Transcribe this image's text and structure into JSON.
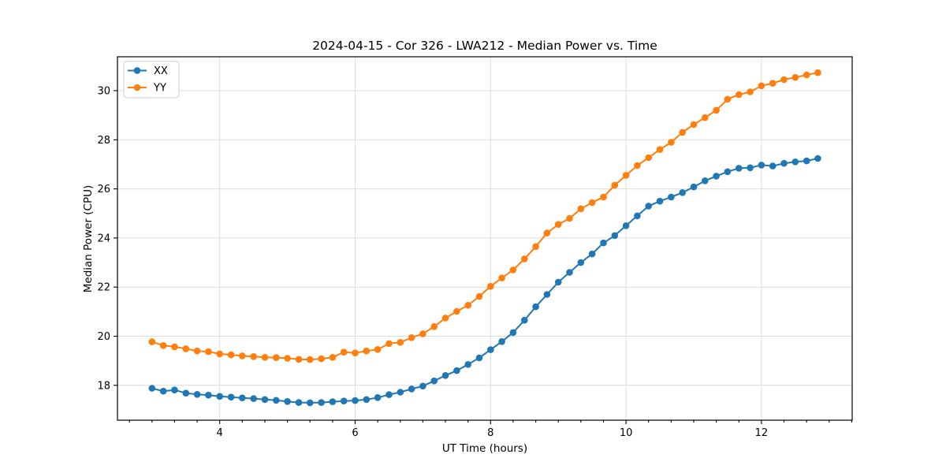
{
  "chart_data": {
    "type": "line",
    "title": "2024-04-15 - Cor 326 - LWA212 - Median Power vs. Time",
    "xlabel": "UT Time (hours)",
    "ylabel": "Median Power (CPU)",
    "xlim": [
      2.49,
      13.34
    ],
    "ylim": [
      16.58,
      31.38
    ],
    "x_major_ticks": [
      4,
      6,
      8,
      10,
      12
    ],
    "x_minor_step_hours": 0.333,
    "y_major_ticks": [
      18,
      20,
      22,
      24,
      26,
      28,
      30
    ],
    "grid": true,
    "legend_position": "upper left",
    "colors": {
      "grid": "#dcdcdc",
      "spine": "#000000",
      "text": "#000000",
      "legend_border": "#cccccc",
      "legend_background": "#ffffff"
    },
    "x": [
      3.0,
      3.167,
      3.333,
      3.5,
      3.667,
      3.833,
      4.0,
      4.167,
      4.333,
      4.5,
      4.667,
      4.833,
      5.0,
      5.167,
      5.333,
      5.5,
      5.667,
      5.833,
      6.0,
      6.167,
      6.333,
      6.5,
      6.667,
      6.833,
      7.0,
      7.167,
      7.333,
      7.5,
      7.667,
      7.833,
      8.0,
      8.167,
      8.333,
      8.5,
      8.667,
      8.833,
      9.0,
      9.167,
      9.333,
      9.5,
      9.667,
      9.833,
      10.0,
      10.167,
      10.333,
      10.5,
      10.667,
      10.833,
      11.0,
      11.167,
      11.333,
      11.5,
      11.667,
      11.833,
      12.0,
      12.167,
      12.333,
      12.5,
      12.667,
      12.833
    ],
    "series": [
      {
        "name": "XX",
        "color": "#1f77b4",
        "values": [
          17.88,
          17.76,
          17.81,
          17.68,
          17.63,
          17.6,
          17.55,
          17.52,
          17.49,
          17.46,
          17.42,
          17.39,
          17.34,
          17.3,
          17.29,
          17.3,
          17.33,
          17.36,
          17.38,
          17.42,
          17.5,
          17.62,
          17.72,
          17.85,
          17.97,
          18.18,
          18.4,
          18.6,
          18.85,
          19.12,
          19.45,
          19.78,
          20.15,
          20.65,
          21.2,
          21.7,
          22.2,
          22.6,
          23.0,
          23.35,
          23.8,
          24.1,
          24.5,
          24.9,
          25.3,
          25.5,
          25.67,
          25.85,
          26.08,
          26.33,
          26.52,
          26.7,
          26.84,
          26.86,
          26.97,
          26.93,
          27.04,
          27.1,
          27.14,
          27.24
        ]
      },
      {
        "name": "YY",
        "color": "#ff7f0e",
        "values": [
          19.77,
          19.62,
          19.57,
          19.49,
          19.4,
          19.37,
          19.28,
          19.24,
          19.2,
          19.17,
          19.14,
          19.13,
          19.1,
          19.06,
          19.05,
          19.08,
          19.14,
          19.35,
          19.32,
          19.4,
          19.46,
          19.7,
          19.75,
          19.94,
          20.1,
          20.39,
          20.74,
          21.01,
          21.26,
          21.62,
          22.03,
          22.37,
          22.7,
          23.15,
          23.65,
          24.2,
          24.55,
          24.8,
          25.19,
          25.44,
          25.67,
          26.15,
          26.55,
          26.95,
          27.27,
          27.6,
          27.9,
          28.3,
          28.62,
          28.9,
          29.2,
          29.65,
          29.84,
          29.95,
          30.2,
          30.3,
          30.45,
          30.54,
          30.64,
          30.73
        ]
      }
    ]
  }
}
